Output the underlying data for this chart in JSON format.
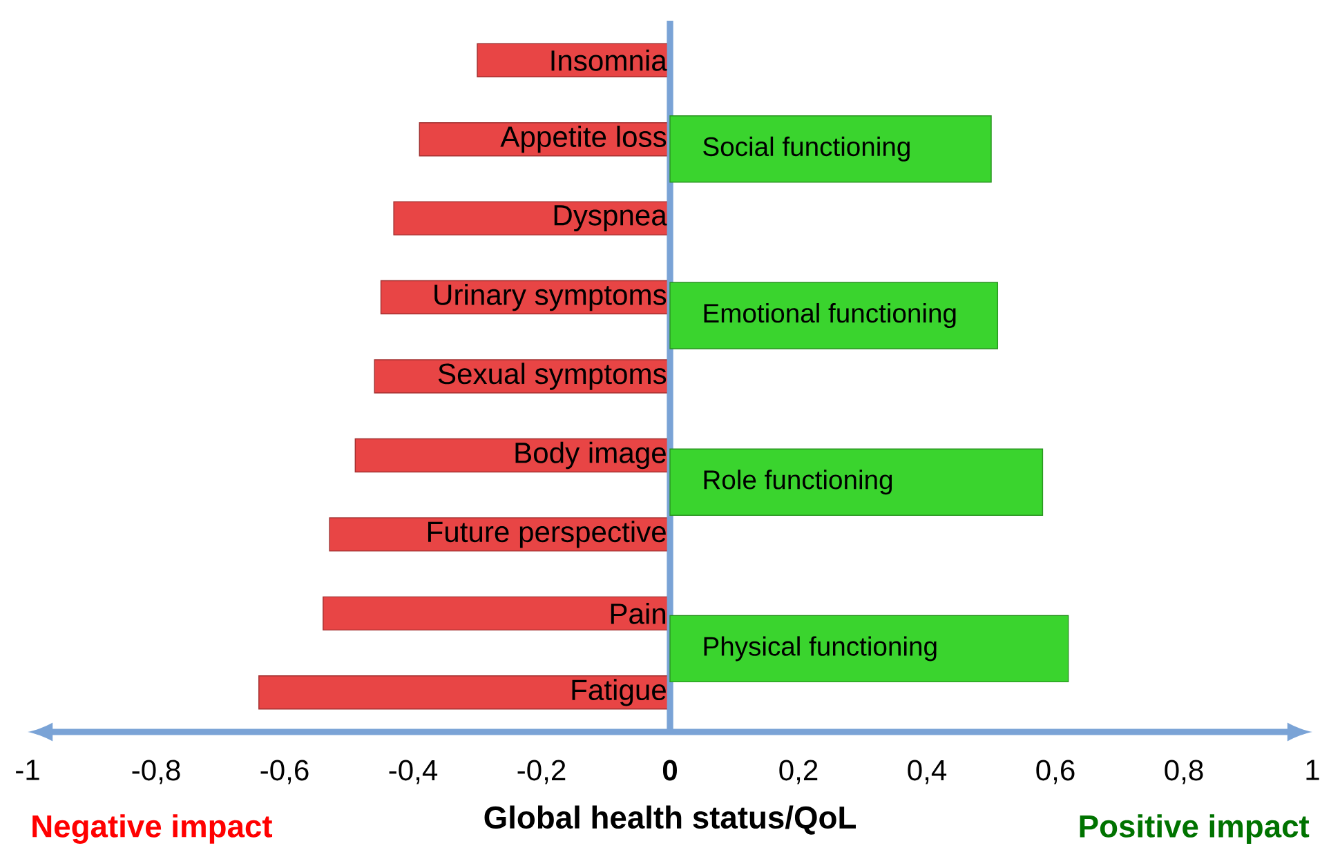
{
  "chart_data": [
    {
      "type": "bar",
      "orientation": "horizontal",
      "xlabel": "Global health status/QoL",
      "categories": [
        "Insomnia",
        "Appetite loss",
        "Dyspnea",
        "Urinary symptoms",
        "Sexual symptoms",
        "Body image",
        "Future perspective",
        "Pain",
        "Fatigue"
      ],
      "values": [
        -0.3,
        -0.39,
        -0.43,
        -0.45,
        -0.46,
        -0.49,
        -0.53,
        -0.54,
        -0.64
      ],
      "color": "#e84545",
      "xlim": [
        -1,
        1
      ],
      "xticks": [
        -1,
        {
          "value": -0.8,
          "label": "-0,8"
        },
        {
          "value": -0.6,
          "label": "-0,6"
        },
        {
          "value": -0.4,
          "label": "-0,4"
        },
        {
          "value": -0.2,
          "label": "-0,2"
        },
        0,
        {
          "value": 0.2,
          "label": "0,2"
        },
        {
          "value": 0.4,
          "label": "0,4"
        },
        {
          "value": 0.6,
          "label": "0,6"
        },
        {
          "value": 0.8,
          "label": "0,8"
        },
        1
      ],
      "annotations": [
        "Negative impact",
        "Positive impact"
      ]
    },
    {
      "type": "bar",
      "orientation": "horizontal",
      "categories": [
        "Social functioning",
        "Emotional functioning",
        "Role functioning",
        "Physical functioning"
      ],
      "values": [
        0.5,
        0.51,
        0.58,
        0.62
      ],
      "color": "#3ad42e",
      "xlim": [
        -1,
        1
      ],
      "tick_labels": "y"
    }
  ]
}
